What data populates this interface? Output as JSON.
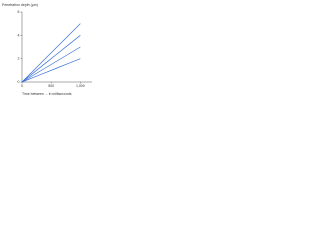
{
  "chart_data": {
    "type": "line",
    "y_label": "Penetration depth (µm)",
    "x_label": "Time between ... in milliseconds",
    "x": [
      0,
      200,
      400,
      600,
      800,
      1000
    ],
    "series": [
      {
        "color": "#3a6fd8",
        "values": [
          0,
          1,
          2,
          3,
          4,
          5
        ]
      },
      {
        "color": "#3a6fd8",
        "values": [
          0,
          0.8,
          1.6,
          2.4,
          3.2,
          4
        ]
      },
      {
        "color": "#3a6fd8",
        "values": [
          0,
          0.6,
          1.2,
          1.8,
          2.4,
          3
        ]
      },
      {
        "color": "#3a6fd8",
        "values": [
          0,
          0.4,
          0.8,
          1.2,
          1.6,
          2
        ]
      }
    ],
    "xlim": [
      0,
      1200
    ],
    "xticks": [
      0,
      500,
      {
        "value": 1000,
        "label": "1,000"
      }
    ],
    "ylim": [
      0,
      6
    ],
    "yticks": [
      0,
      2,
      4,
      6
    ],
    "grid": false
  }
}
